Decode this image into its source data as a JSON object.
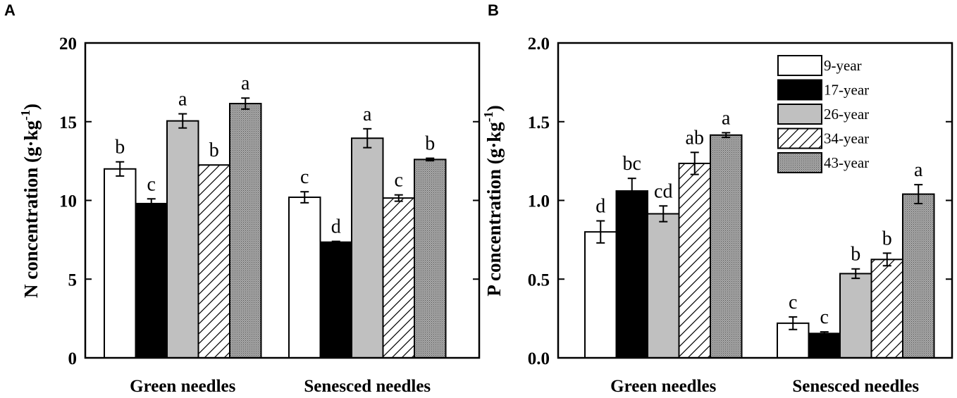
{
  "colors": {
    "9-year": "#ffffff",
    "17-year": "#000000",
    "26-year": "#c0c0c0",
    "34-year": "hatch",
    "43-year": "stipple"
  },
  "chart_data": [
    {
      "panel": "A",
      "type": "bar",
      "ylabel_main": "N concentration (g·kg",
      "ylabel_sup": "-1",
      "ylabel_close": ")",
      "xlabel": "",
      "ylim": [
        0,
        20
      ],
      "yticks": [
        0,
        5,
        10,
        15,
        20
      ],
      "categories": [
        "Green needles",
        "Senesced needles"
      ],
      "series": [
        {
          "name": "9-year",
          "values": [
            12.0,
            10.2
          ],
          "errors": [
            0.45,
            0.35
          ],
          "labels": [
            "b",
            "c"
          ]
        },
        {
          "name": "17-year",
          "values": [
            9.8,
            7.35
          ],
          "errors": [
            0.3,
            0.05
          ],
          "labels": [
            "c",
            "d"
          ]
        },
        {
          "name": "26-year",
          "values": [
            15.05,
            13.95
          ],
          "errors": [
            0.45,
            0.6
          ],
          "labels": [
            "a",
            "a"
          ]
        },
        {
          "name": "34-year",
          "values": [
            12.25,
            10.15
          ],
          "errors": [
            0.0,
            0.2
          ],
          "labels": [
            "b",
            "c"
          ]
        },
        {
          "name": "43-year",
          "values": [
            16.15,
            12.6
          ],
          "errors": [
            0.35,
            0.08
          ],
          "labels": [
            "a",
            "b"
          ]
        }
      ]
    },
    {
      "panel": "B",
      "type": "bar",
      "ylabel_main": "P concentration (g·kg",
      "ylabel_sup": "-1",
      "ylabel_close": ")",
      "xlabel": "",
      "ylim": [
        0,
        2.0
      ],
      "yticks": [
        0,
        0.5,
        1.0,
        1.5,
        2.0
      ],
      "categories": [
        "Green needles",
        "Senesced needles"
      ],
      "legend": [
        "9-year",
        "17-year",
        "26-year",
        "34-year",
        "43-year"
      ],
      "legend_position": "top-right",
      "series": [
        {
          "name": "9-year",
          "values": [
            0.8,
            0.22
          ],
          "errors": [
            0.07,
            0.04
          ],
          "labels": [
            "d",
            "c"
          ]
        },
        {
          "name": "17-year",
          "values": [
            1.06,
            0.155
          ],
          "errors": [
            0.08,
            0.01
          ],
          "labels": [
            "bc",
            "c"
          ]
        },
        {
          "name": "26-year",
          "values": [
            0.915,
            0.535
          ],
          "errors": [
            0.05,
            0.03
          ],
          "labels": [
            "cd",
            "b"
          ]
        },
        {
          "name": "34-year",
          "values": [
            1.235,
            0.625
          ],
          "errors": [
            0.07,
            0.04
          ],
          "labels": [
            "ab",
            "b"
          ]
        },
        {
          "name": "43-year",
          "values": [
            1.415,
            1.04
          ],
          "errors": [
            0.015,
            0.06
          ],
          "labels": [
            "a",
            "a"
          ]
        }
      ]
    }
  ]
}
